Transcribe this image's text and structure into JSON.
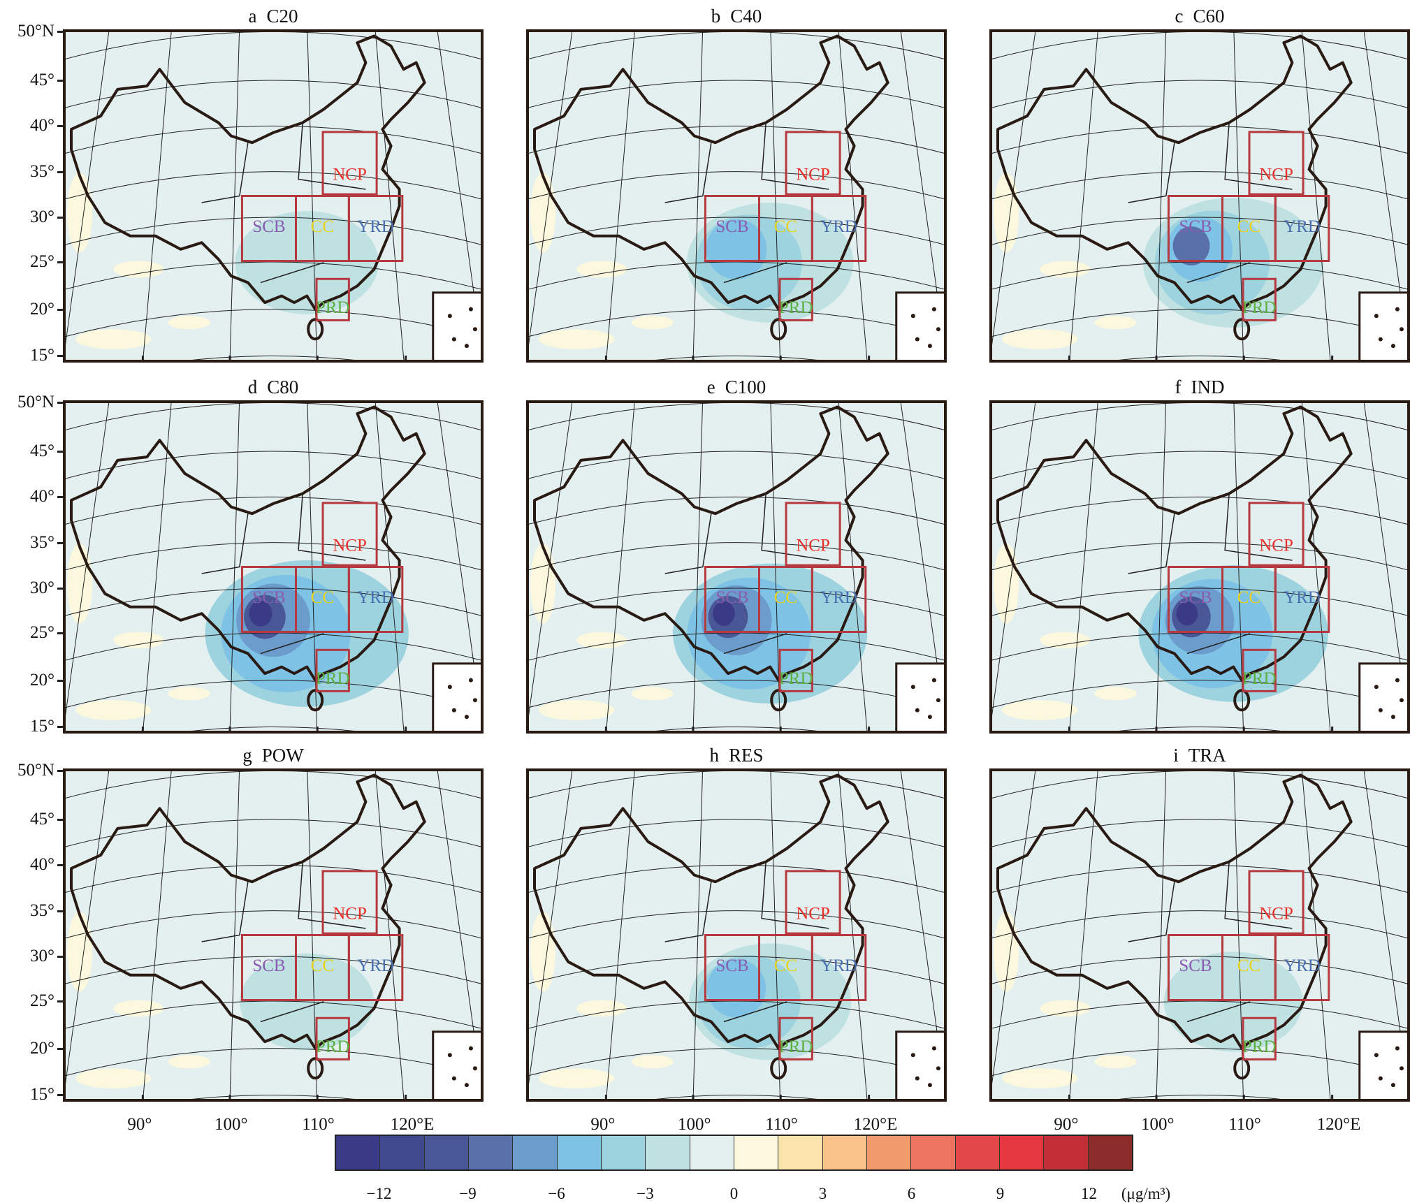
{
  "chart_data": {
    "type": "heatmap",
    "panels": [
      {
        "letter": "a",
        "title": "C20"
      },
      {
        "letter": "b",
        "title": "C40"
      },
      {
        "letter": "c",
        "title": "C60"
      },
      {
        "letter": "d",
        "title": "C80"
      },
      {
        "letter": "e",
        "title": "C100"
      },
      {
        "letter": "f",
        "title": "IND"
      },
      {
        "letter": "g",
        "title": "POW"
      },
      {
        "letter": "h",
        "title": "RES"
      },
      {
        "letter": "i",
        "title": "TRA"
      }
    ],
    "regions": [
      {
        "name": "NCP",
        "color": "#e8302a"
      },
      {
        "name": "SCB",
        "color": "#8a5cb0"
      },
      {
        "name": "CC",
        "color": "#e8d21e"
      },
      {
        "name": "YRD",
        "color": "#4a6fb0"
      },
      {
        "name": "PRD",
        "color": "#5cb040"
      }
    ],
    "region_box_color": "#b5393f",
    "lat_ticks": [
      "50°N",
      "45°",
      "40°",
      "35°",
      "30°",
      "25°",
      "20°",
      "15°"
    ],
    "lon_ticks": [
      "90°",
      "100°",
      "110°",
      "120°E"
    ],
    "colorbar": {
      "colors": [
        "#3b3a86",
        "#3f4a8e",
        "#4a5797",
        "#5a70aa",
        "#6c9ccb",
        "#7ec3e6",
        "#9dd2df",
        "#bfe1e2",
        "#e4f0ef",
        "#fbf8de",
        "#fbe3ac",
        "#f8c28a",
        "#f09a6e",
        "#ec7561",
        "#e4474a",
        "#e3383f",
        "#c22f36",
        "#8b2c2a"
      ],
      "ticks": [
        "-12",
        "-9",
        "-6",
        "-3",
        "0",
        "3",
        "6",
        "9",
        "12"
      ],
      "tick_values": [
        -12,
        -9,
        -6,
        -3,
        0,
        3,
        6,
        9,
        12
      ],
      "range": [
        -13.5,
        13.5
      ],
      "unit": "(μg/m³)"
    }
  }
}
